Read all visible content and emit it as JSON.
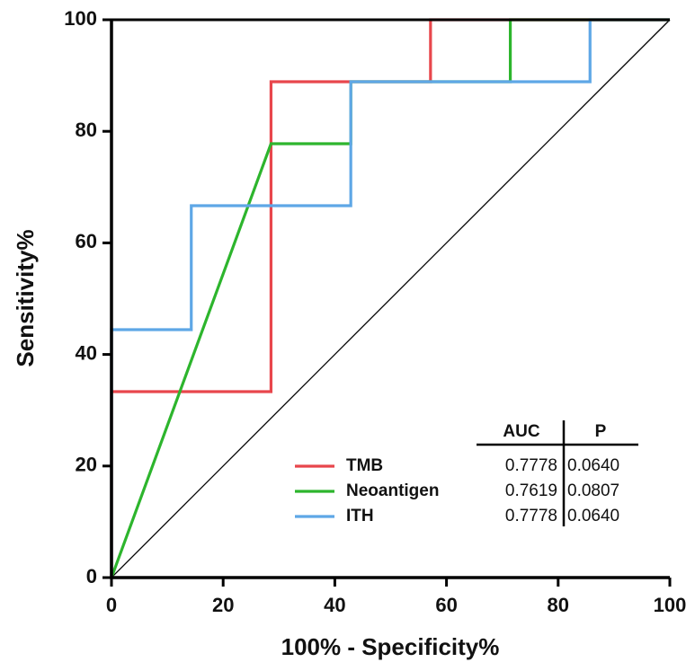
{
  "chart_data": {
    "type": "line",
    "xlabel": "100% - Specificity%",
    "ylabel": "Sensitivity%",
    "xlim": [
      0,
      100
    ],
    "ylim": [
      0,
      100
    ],
    "xticks": [
      0,
      20,
      40,
      60,
      80,
      100
    ],
    "yticks": [
      0,
      20,
      40,
      60,
      80,
      100
    ],
    "series": [
      {
        "name": "TMB",
        "color": "#e8464c",
        "x": [
          0,
          0,
          28.57,
          28.57,
          57.14,
          57.14,
          100
        ],
        "values": [
          0,
          33.33,
          33.33,
          88.89,
          88.89,
          100,
          100
        ]
      },
      {
        "name": "Neoantigen",
        "color": "#2db52d",
        "x": [
          0,
          28.57,
          42.86,
          42.86,
          71.43,
          71.43,
          100
        ],
        "values": [
          0,
          77.78,
          77.78,
          88.89,
          88.89,
          100,
          100
        ]
      },
      {
        "name": "ITH",
        "color": "#5ea7e6",
        "x": [
          0,
          0,
          14.29,
          14.29,
          42.86,
          42.86,
          85.71,
          85.71,
          100
        ],
        "values": [
          0,
          44.44,
          44.44,
          66.67,
          66.67,
          88.89,
          88.89,
          100,
          100
        ]
      }
    ],
    "stats_table": {
      "columns": [
        "AUC",
        "P"
      ],
      "rows": [
        [
          "0.7778",
          "0.0640"
        ],
        [
          "0.7619",
          "0.0807"
        ],
        [
          "0.7778",
          "0.0640"
        ]
      ]
    }
  }
}
